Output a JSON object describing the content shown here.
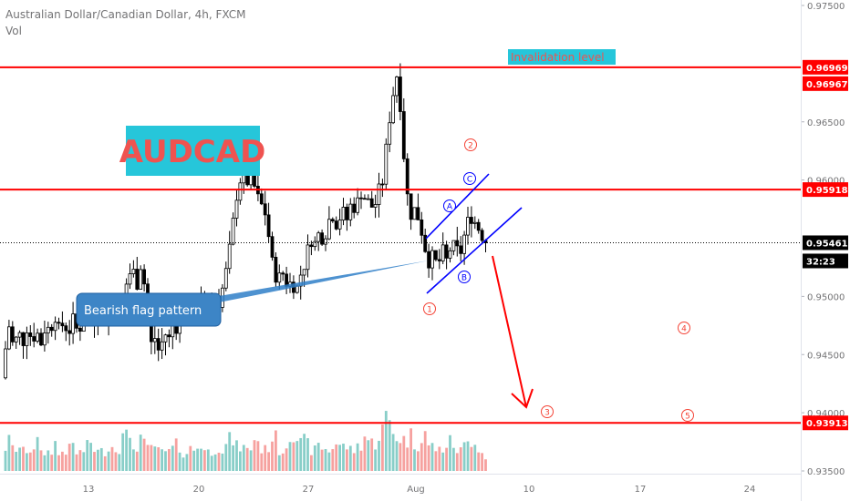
{
  "header": {
    "symbol_title": "Australian Dollar/Canadian Dollar, 4h, FXCM",
    "indicator": "Vol"
  },
  "colors": {
    "bull": "#26a69a",
    "bear": "#ef5350",
    "candle": "#000000",
    "level": "#ff0000",
    "channel": "#0000ff",
    "label_bg": "#26c6da",
    "title_text": "#ef5350",
    "flag_bg": "#3d85c6",
    "marker": "#f44336"
  },
  "chart_data": {
    "type": "candlestick",
    "title": "AUDCAD",
    "ylim": [
      0.935,
      0.975
    ],
    "price_ticks": [
      "0.97500",
      "0.96500",
      "0.96000",
      "0.95000",
      "0.94500",
      "0.94000",
      "0.93500"
    ],
    "x_tick_labels": [
      "13",
      "20",
      "27",
      "Aug",
      "10",
      "17",
      "24"
    ],
    "horizontal_levels": [
      {
        "price": 0.96969,
        "label": "0.96969"
      },
      {
        "price": 0.95918,
        "label": "0.95918"
      },
      {
        "price": 0.93913,
        "label": "0.93913"
      }
    ],
    "extra_price_labels": [
      "0.96967"
    ],
    "current_price": {
      "price": 0.95461,
      "label": "0.95461",
      "countdown": "32:23"
    },
    "annotations": {
      "invalidation": "Invalidation level",
      "pattern": "Bearish flag pattern",
      "wave_labels": [
        "1",
        "2",
        "3",
        "4",
        "5"
      ],
      "abc_labels": [
        "A",
        "B",
        "C"
      ]
    },
    "price_path": [
      [
        0,
        0.943
      ],
      [
        5,
        0.945
      ],
      [
        10,
        0.9475
      ],
      [
        15,
        0.9455
      ],
      [
        20,
        0.947
      ],
      [
        25,
        0.946
      ],
      [
        30,
        0.9475
      ],
      [
        35,
        0.9462
      ],
      [
        40,
        0.947
      ],
      [
        45,
        0.946
      ],
      [
        50,
        0.9475
      ],
      [
        55,
        0.947
      ],
      [
        60,
        0.9485
      ],
      [
        65,
        0.947
      ],
      [
        70,
        0.9478
      ],
      [
        75,
        0.9468
      ],
      [
        80,
        0.948
      ],
      [
        85,
        0.947
      ],
      [
        90,
        0.9476
      ],
      [
        95,
        0.9484
      ],
      [
        100,
        0.9488
      ],
      [
        105,
        0.9476
      ],
      [
        110,
        0.949
      ],
      [
        115,
        0.948
      ],
      [
        120,
        0.9495
      ],
      [
        125,
        0.9484
      ],
      [
        130,
        0.949
      ],
      [
        135,
        0.95
      ],
      [
        140,
        0.9515
      ],
      [
        145,
        0.9525
      ],
      [
        150,
        0.951
      ],
      [
        155,
        0.953
      ],
      [
        160,
        0.95
      ],
      [
        163,
        0.947
      ],
      [
        167,
        0.9455
      ],
      [
        170,
        0.9465
      ],
      [
        175,
        0.945
      ],
      [
        180,
        0.947
      ],
      [
        185,
        0.9462
      ],
      [
        190,
        0.948
      ],
      [
        195,
        0.947
      ],
      [
        200,
        0.9488
      ],
      [
        205,
        0.9478
      ],
      [
        210,
        0.949
      ],
      [
        215,
        0.9485
      ],
      [
        220,
        0.9498
      ],
      [
        225,
        0.9488
      ],
      [
        230,
        0.9495
      ],
      [
        235,
        0.95
      ],
      [
        240,
        0.9495
      ],
      [
        245,
        0.951
      ],
      [
        250,
        0.953
      ],
      [
        255,
        0.956
      ],
      [
        260,
        0.959
      ],
      [
        265,
        0.9605
      ],
      [
        270,
        0.9595
      ],
      [
        275,
        0.961
      ],
      [
        280,
        0.959
      ],
      [
        285,
        0.958
      ],
      [
        290,
        0.9575
      ],
      [
        295,
        0.955
      ],
      [
        300,
        0.952
      ],
      [
        305,
        0.9515
      ],
      [
        310,
        0.952
      ],
      [
        315,
        0.951
      ],
      [
        320,
        0.9512
      ],
      [
        325,
        0.9505
      ],
      [
        330,
        0.952
      ],
      [
        335,
        0.953
      ],
      [
        340,
        0.955
      ],
      [
        345,
        0.9545
      ],
      [
        350,
        0.9555
      ],
      [
        355,
        0.9548
      ],
      [
        360,
        0.9565
      ],
      [
        365,
        0.957
      ],
      [
        370,
        0.956
      ],
      [
        375,
        0.9575
      ],
      [
        380,
        0.9565
      ],
      [
        385,
        0.958
      ],
      [
        390,
        0.9575
      ],
      [
        395,
        0.959
      ],
      [
        400,
        0.9585
      ],
      [
        405,
        0.958
      ],
      [
        410,
        0.9575
      ],
      [
        415,
        0.959
      ],
      [
        420,
        0.96
      ],
      [
        425,
        0.964
      ],
      [
        430,
        0.967
      ],
      [
        435,
        0.969
      ],
      [
        438,
        0.9685
      ],
      [
        440,
        0.964
      ],
      [
        443,
        0.962
      ],
      [
        446,
        0.959
      ],
      [
        450,
        0.957
      ],
      [
        455,
        0.9575
      ],
      [
        460,
        0.9565
      ],
      [
        465,
        0.9545
      ],
      [
        470,
        0.953
      ],
      [
        475,
        0.9535
      ],
      [
        480,
        0.9525
      ],
      [
        485,
        0.954
      ],
      [
        490,
        0.953
      ],
      [
        495,
        0.9545
      ],
      [
        500,
        0.954
      ],
      [
        505,
        0.9538
      ],
      [
        510,
        0.9555
      ],
      [
        515,
        0.957
      ],
      [
        520,
        0.9565
      ],
      [
        525,
        0.9558
      ],
      [
        530,
        0.955
      ],
      [
        535,
        0.9546
      ]
    ],
    "volume_path": [
      [
        0,
        0.55
      ],
      [
        5,
        0.35
      ],
      [
        10,
        0.45
      ],
      [
        15,
        0.3
      ],
      [
        20,
        0.4
      ],
      [
        25,
        0.28
      ],
      [
        30,
        0.35
      ],
      [
        35,
        0.32
      ],
      [
        40,
        0.5
      ],
      [
        45,
        0.25
      ],
      [
        50,
        0.3
      ],
      [
        55,
        0.28
      ],
      [
        60,
        0.45
      ],
      [
        65,
        0.22
      ],
      [
        70,
        0.35
      ],
      [
        75,
        0.3
      ],
      [
        80,
        0.4
      ],
      [
        85,
        0.25
      ],
      [
        90,
        0.3
      ],
      [
        95,
        0.35
      ],
      [
        100,
        0.45
      ],
      [
        105,
        0.3
      ],
      [
        110,
        0.28
      ],
      [
        115,
        0.32
      ],
      [
        120,
        0.4
      ],
      [
        125,
        0.35
      ],
      [
        130,
        0.3
      ],
      [
        135,
        0.8
      ],
      [
        140,
        0.45
      ],
      [
        145,
        0.35
      ],
      [
        150,
        0.4
      ],
      [
        155,
        0.55
      ],
      [
        160,
        0.3
      ],
      [
        165,
        0.35
      ],
      [
        170,
        0.4
      ],
      [
        175,
        0.25
      ],
      [
        180,
        0.3
      ],
      [
        185,
        0.28
      ],
      [
        190,
        0.35
      ],
      [
        195,
        0.4
      ],
      [
        200,
        0.3
      ],
      [
        205,
        0.28
      ],
      [
        210,
        0.35
      ],
      [
        215,
        0.32
      ],
      [
        220,
        0.45
      ],
      [
        225,
        0.3
      ],
      [
        230,
        0.28
      ],
      [
        235,
        0.35
      ],
      [
        240,
        0.4
      ],
      [
        245,
        0.3
      ],
      [
        250,
        0.45
      ],
      [
        255,
        0.5
      ],
      [
        260,
        0.35
      ],
      [
        265,
        0.4
      ],
      [
        270,
        0.3
      ],
      [
        275,
        0.35
      ],
      [
        280,
        0.55
      ],
      [
        285,
        0.38
      ],
      [
        290,
        0.3
      ],
      [
        295,
        0.4
      ],
      [
        300,
        0.6
      ],
      [
        305,
        0.35
      ],
      [
        310,
        0.3
      ],
      [
        315,
        0.45
      ],
      [
        320,
        0.7
      ],
      [
        325,
        0.55
      ],
      [
        330,
        0.4
      ],
      [
        335,
        0.45
      ],
      [
        340,
        0.35
      ],
      [
        345,
        0.3
      ],
      [
        350,
        0.4
      ],
      [
        355,
        0.35
      ],
      [
        360,
        0.3
      ],
      [
        365,
        0.38
      ],
      [
        370,
        0.45
      ],
      [
        375,
        0.35
      ],
      [
        380,
        0.4
      ],
      [
        385,
        0.3
      ],
      [
        390,
        0.35
      ],
      [
        395,
        0.4
      ],
      [
        400,
        0.55
      ],
      [
        405,
        0.45
      ],
      [
        410,
        0.4
      ],
      [
        415,
        0.55
      ],
      [
        420,
        0.65
      ],
      [
        425,
        0.85
      ],
      [
        430,
        0.6
      ],
      [
        435,
        0.55
      ],
      [
        440,
        0.5
      ],
      [
        445,
        0.45
      ],
      [
        450,
        0.55
      ],
      [
        455,
        0.4
      ],
      [
        460,
        0.45
      ],
      [
        465,
        0.7
      ],
      [
        470,
        0.35
      ],
      [
        475,
        0.4
      ],
      [
        480,
        0.3
      ],
      [
        485,
        0.35
      ],
      [
        490,
        0.4
      ],
      [
        495,
        0.45
      ],
      [
        500,
        0.35
      ],
      [
        505,
        0.3
      ],
      [
        510,
        0.4
      ],
      [
        515,
        0.45
      ],
      [
        520,
        0.55
      ],
      [
        525,
        0.35
      ],
      [
        530,
        0.25
      ],
      [
        535,
        0.2
      ]
    ]
  }
}
